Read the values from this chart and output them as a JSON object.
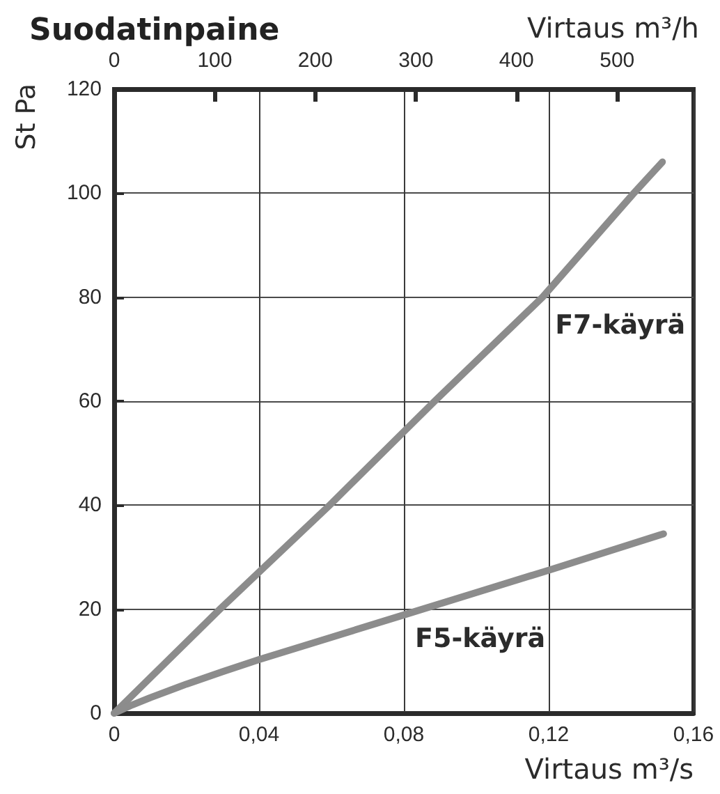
{
  "chart_data": {
    "type": "line",
    "title": "Suodatinpaine",
    "xlabel": "Virtaus m³/s",
    "x2label": "Virtaus m³/h",
    "ylabel": "St Pa",
    "xlim": [
      0,
      0.16
    ],
    "xticks": [
      0,
      {
        "value": 0.04,
        "label": "0,04"
      },
      {
        "value": 0.08,
        "label": "0,08"
      },
      {
        "value": 0.12,
        "label": "0,12"
      },
      {
        "value": 0.16,
        "label": "0,16"
      }
    ],
    "x2lim": [
      0,
      576
    ],
    "x2ticks": [
      0,
      100,
      200,
      300,
      400,
      500
    ],
    "ylim": [
      0,
      120
    ],
    "yticks": [
      0,
      20,
      40,
      60,
      80,
      100,
      120
    ],
    "grid": true,
    "marker": "none",
    "line_style": "solid",
    "series": [
      {
        "name": "F7-käyrä",
        "color": "#8c8c8c",
        "x": [
          0,
          0.0292,
          0.0595,
          0.0885,
          0.1183,
          0.1435,
          0.1514
        ],
        "values": [
          0,
          20,
          40,
          60,
          80,
          100,
          106
        ]
      },
      {
        "name": "F5-käyrä",
        "color": "#8c8c8c",
        "x": [
          0,
          0.005,
          0.01,
          0.02,
          0.03,
          0.04,
          0.06,
          0.08,
          0.1,
          0.12,
          0.14,
          0.1517
        ],
        "values": [
          0,
          1.6,
          3,
          5.6,
          8,
          10.3,
          14.6,
          18.9,
          23.2,
          27.5,
          31.9,
          34.5
        ]
      }
    ]
  }
}
